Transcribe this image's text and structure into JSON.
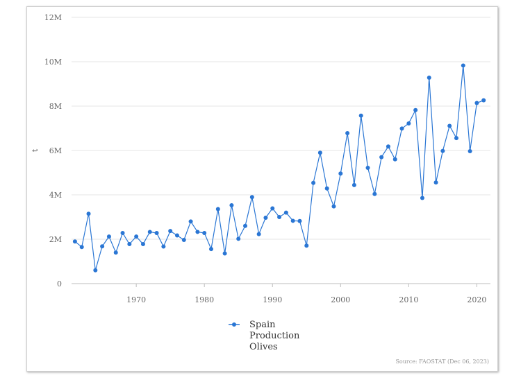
{
  "chart_data": {
    "type": "line",
    "ylabel": "t",
    "xlabel": "",
    "xlim": [
      1960.5,
      2022
    ],
    "ylim": [
      0,
      12000000
    ],
    "x_ticks": [
      1970,
      1980,
      1990,
      2000,
      2010,
      2020
    ],
    "y_ticks": [
      {
        "value": 0,
        "label": "0"
      },
      {
        "value": 2000000,
        "label": "2M"
      },
      {
        "value": 4000000,
        "label": "4M"
      },
      {
        "value": 6000000,
        "label": "6M"
      },
      {
        "value": 8000000,
        "label": "8M"
      },
      {
        "value": 10000000,
        "label": "10M"
      },
      {
        "value": 12000000,
        "label": "12M"
      }
    ],
    "grid": "horizontal",
    "legend_position": "bottom",
    "color": "#2a76d4",
    "series": [
      {
        "name": "Spain Production Olives",
        "name_lines": [
          "Spain",
          "Production",
          "Olives"
        ],
        "x": [
          1961,
          1962,
          1963,
          1964,
          1965,
          1966,
          1967,
          1968,
          1969,
          1970,
          1971,
          1972,
          1973,
          1974,
          1975,
          1976,
          1977,
          1978,
          1979,
          1980,
          1981,
          1982,
          1983,
          1984,
          1985,
          1986,
          1987,
          1988,
          1989,
          1990,
          1991,
          1992,
          1993,
          1994,
          1995,
          1996,
          1997,
          1998,
          1999,
          2000,
          2001,
          2002,
          2003,
          2004,
          2005,
          2006,
          2007,
          2008,
          2009,
          2010,
          2011,
          2012,
          2013,
          2014,
          2015,
          2016,
          2017,
          2018,
          2019,
          2020,
          2021
        ],
        "values": [
          1900000,
          1650000,
          3150000,
          600000,
          1680000,
          2120000,
          1400000,
          2280000,
          1780000,
          2120000,
          1780000,
          2330000,
          2280000,
          1670000,
          2370000,
          2170000,
          1970000,
          2800000,
          2330000,
          2280000,
          1560000,
          3360000,
          1360000,
          3530000,
          2020000,
          2600000,
          3900000,
          2230000,
          2970000,
          3390000,
          3000000,
          3200000,
          2830000,
          2820000,
          1710000,
          4540000,
          5900000,
          4290000,
          3480000,
          4960000,
          6780000,
          4440000,
          7570000,
          5220000,
          4040000,
          5700000,
          6180000,
          5600000,
          6990000,
          7220000,
          7820000,
          3860000,
          9280000,
          4560000,
          5980000,
          7110000,
          6560000,
          9830000,
          5970000,
          8140000,
          8260000
        ]
      }
    ],
    "source": "Source: FAOSTAT (Dec 06, 2023)"
  }
}
